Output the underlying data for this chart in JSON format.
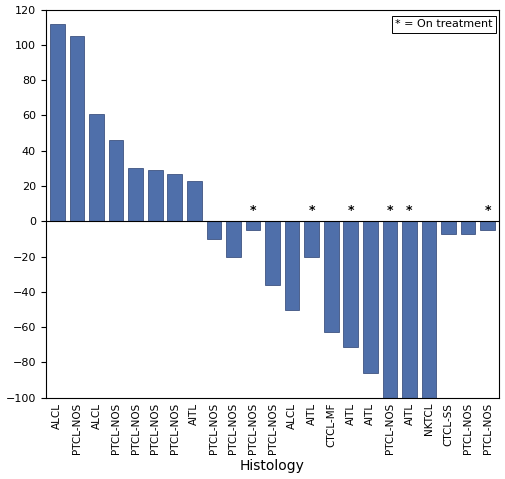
{
  "categories": [
    "ALCL",
    "PTCL-NOS",
    "ALCL",
    "PTCL-NOS",
    "PTCL-NOS",
    "PTCL-NOS",
    "PTCL-NOS",
    "AITL",
    "PTCL-NOS",
    "PTCL-NOS",
    "PTCL-NOS",
    "PTCL-NOS",
    "ALCL",
    "AITL",
    "CTCL-MF",
    "AITL",
    "AITL",
    "PTCL-NOS",
    "AITL",
    "NKTCL",
    "CTCL-SS",
    "PTCL-NOS",
    "PTCL-NOS"
  ],
  "values": [
    112,
    105,
    61,
    46,
    30,
    29,
    27,
    23,
    -10,
    -20,
    -5,
    -36,
    -50,
    -20,
    -63,
    -71,
    -86,
    -101,
    -101,
    -101,
    -7,
    -7,
    -5
  ],
  "on_treatment": [
    false,
    false,
    false,
    false,
    false,
    false,
    false,
    false,
    false,
    false,
    true,
    false,
    false,
    true,
    false,
    true,
    false,
    true,
    true,
    false,
    false,
    false,
    true
  ],
  "bar_color": "#4f6faa",
  "bar_edge_color": "#2a4070",
  "ylim": [
    -100,
    120
  ],
  "yticks": [
    -100,
    -80,
    -60,
    -40,
    -20,
    0,
    20,
    40,
    60,
    80,
    100,
    120
  ],
  "xlabel": "Histology",
  "legend_text": "* = On treatment",
  "tick_fontsize": 7.5,
  "xlabel_fontsize": 10,
  "ytick_fontsize": 8
}
